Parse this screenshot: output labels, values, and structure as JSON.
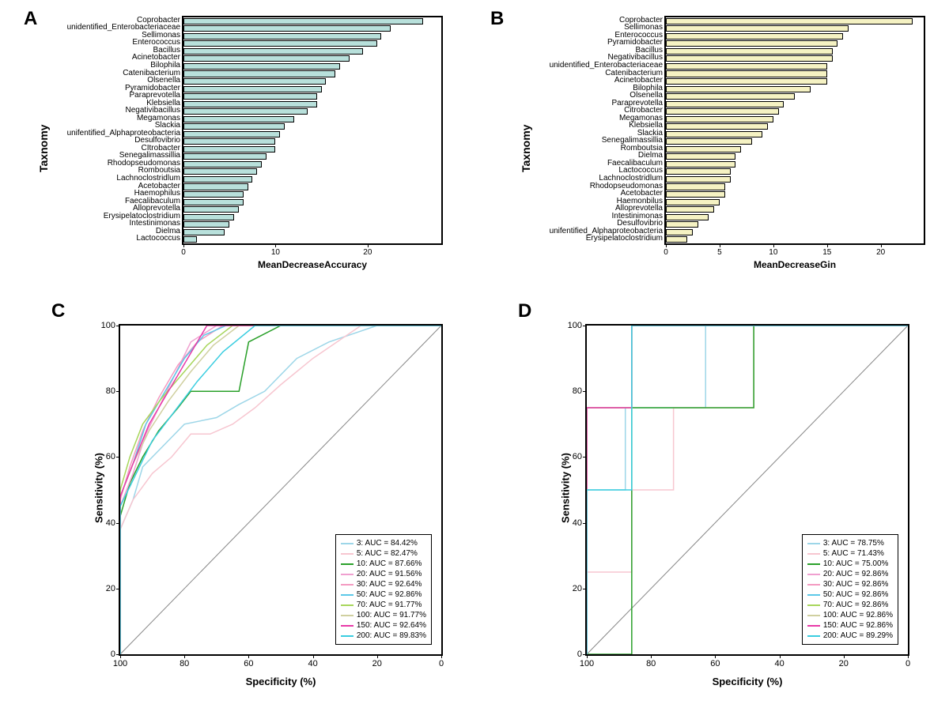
{
  "panelA": {
    "label": "A",
    "type": "bar",
    "y_axis_title": "Taxnomy",
    "x_axis_title": "MeanDecreaseAccuracy",
    "bar_color": "#b8e0db",
    "bar_border": "#000000",
    "background_color": "#ffffff",
    "xlim": [
      0,
      28
    ],
    "xticks": [
      0,
      10,
      20
    ],
    "label_fontsize": 10,
    "title_fontsize": 14,
    "categories": [
      "Coprobacter",
      "unidentified_Enterobacteriaceae",
      "Sellimonas",
      "Enterococcus",
      "Bacillus",
      "Acinetobacter",
      "Bilophila",
      "Catenibacterium",
      "Olsenella",
      "Pyramidobacter",
      "Paraprevotella",
      "Klebsiella",
      "Negativibacillus",
      "Megamonas",
      "Slackia",
      "unifentified_Alphaproteobacteria",
      "Desulfovibrio",
      "CItrobacter",
      "Senegalimassillia",
      "Rhodopseudomonas",
      "Romboutsia",
      "Lachnoclostridlum",
      "Acetobacter",
      "Haemophilus",
      "Faecalibaculum",
      "Alloprevotella",
      "Erysipelatoclostridium",
      "Intestinimonas",
      "Dielma",
      "Lactococcus"
    ],
    "values": [
      26,
      22.5,
      21.5,
      21,
      19.5,
      18,
      17,
      16.5,
      15.5,
      15,
      14.5,
      14.5,
      13.5,
      12,
      11,
      10.5,
      10,
      10,
      9,
      8.5,
      8,
      7.5,
      7,
      6.5,
      6.5,
      6,
      5.5,
      5,
      4.5,
      1.5
    ]
  },
  "panelB": {
    "label": "B",
    "type": "bar",
    "y_axis_title": "Taxnomy",
    "x_axis_title": "MeanDecreaseGin",
    "bar_color": "#f5f2c3",
    "bar_border": "#000000",
    "background_color": "#ffffff",
    "xlim": [
      0,
      24
    ],
    "xticks": [
      0,
      5,
      10,
      15,
      20
    ],
    "label_fontsize": 10,
    "title_fontsize": 14,
    "categories": [
      "Coprobacter",
      "Sellimonas",
      "Enterococcus",
      "Pyramidobacter",
      "Bacillus",
      "Negativibacillus",
      "unidentified_Enterobacteriaceae",
      "Catenibacterium",
      "Acinetobacter",
      "Bilophila",
      "Olsenella",
      "Paraprevotella",
      "Citrobacter",
      "Megamonas",
      "Klebsiella",
      "Slackia",
      "Senegalimassillia",
      "Romboutsia",
      "Dielma",
      "Faecalibaculum",
      "Lactococcus",
      "Lachnoclostridlum",
      "Rhodopseudomonas",
      "Acetobacter",
      "Haemonbilus",
      "Alloprevotella",
      "Intestinimonas",
      "Desulfovibrio",
      "unifentified_Alphaproteobacteria",
      "Erysipelatoclostridium"
    ],
    "values": [
      23,
      17,
      16.5,
      16,
      15.5,
      15.5,
      15,
      15,
      15,
      13.5,
      12,
      11,
      10.5,
      10,
      9.5,
      9,
      8,
      7,
      6.5,
      6.5,
      6,
      6,
      5.5,
      5.5,
      5,
      4.5,
      4,
      3,
      2.5,
      2
    ]
  },
  "panelC": {
    "label": "C",
    "type": "roc",
    "x_axis_title": "Specificity (%)",
    "y_axis_title": "Sensitivity (%)",
    "xlim": [
      100,
      0
    ],
    "ylim": [
      0,
      100
    ],
    "xticks": [
      100,
      80,
      60,
      40,
      20,
      0
    ],
    "yticks": [
      0,
      20,
      40,
      60,
      80,
      100
    ],
    "diagonal_color": "#888888",
    "background_color": "#ffffff",
    "line_width": 1.5,
    "series": [
      {
        "name": "3",
        "label": "3: AUC = 84.42%",
        "color": "#9dd6e8",
        "points": [
          [
            100,
            0
          ],
          [
            100,
            38
          ],
          [
            96,
            47
          ],
          [
            93,
            57
          ],
          [
            85,
            65
          ],
          [
            80,
            70
          ],
          [
            70,
            72
          ],
          [
            63,
            76
          ],
          [
            55,
            80
          ],
          [
            45,
            90
          ],
          [
            35,
            95
          ],
          [
            20,
            100
          ],
          [
            0,
            100
          ]
        ]
      },
      {
        "name": "5",
        "label": "5: AUC = 82.47%",
        "color": "#f7c6d0",
        "points": [
          [
            100,
            0
          ],
          [
            100,
            38
          ],
          [
            96,
            47
          ],
          [
            90,
            55
          ],
          [
            84,
            60
          ],
          [
            78,
            67
          ],
          [
            72,
            67
          ],
          [
            65,
            70
          ],
          [
            58,
            75
          ],
          [
            50,
            82
          ],
          [
            40,
            90
          ],
          [
            25,
            100
          ],
          [
            0,
            100
          ]
        ]
      },
      {
        "name": "10",
        "label": "10: AUC = 87.66%",
        "color": "#2aa02a",
        "points": [
          [
            100,
            0
          ],
          [
            100,
            42
          ],
          [
            97,
            52
          ],
          [
            93,
            60
          ],
          [
            88,
            68
          ],
          [
            82,
            75
          ],
          [
            78,
            80
          ],
          [
            63,
            80
          ],
          [
            60,
            95
          ],
          [
            50,
            100
          ],
          [
            0,
            100
          ]
        ]
      },
      {
        "name": "20",
        "label": "20: AUC = 91.56%",
        "color": "#f0a0d0",
        "points": [
          [
            100,
            0
          ],
          [
            100,
            45
          ],
          [
            96,
            55
          ],
          [
            92,
            67
          ],
          [
            88,
            75
          ],
          [
            83,
            85
          ],
          [
            78,
            95
          ],
          [
            70,
            100
          ],
          [
            0,
            100
          ]
        ]
      },
      {
        "name": "30",
        "label": "30: AUC = 92.64%",
        "color": "#f49ac1",
        "points": [
          [
            100,
            0
          ],
          [
            100,
            47
          ],
          [
            97,
            57
          ],
          [
            93,
            68
          ],
          [
            88,
            78
          ],
          [
            82,
            88
          ],
          [
            76,
            95
          ],
          [
            68,
            100
          ],
          [
            0,
            100
          ]
        ]
      },
      {
        "name": "50",
        "label": "50: AUC = 92.86%",
        "color": "#5cc8e8",
        "points": [
          [
            100,
            0
          ],
          [
            100,
            48
          ],
          [
            96,
            58
          ],
          [
            92,
            70
          ],
          [
            86,
            80
          ],
          [
            80,
            90
          ],
          [
            74,
            97
          ],
          [
            67,
            100
          ],
          [
            0,
            100
          ]
        ]
      },
      {
        "name": "70",
        "label": "70: AUC = 91.77%",
        "color": "#a8d65c",
        "points": [
          [
            100,
            0
          ],
          [
            100,
            50
          ],
          [
            97,
            60
          ],
          [
            93,
            70
          ],
          [
            87,
            78
          ],
          [
            80,
            86
          ],
          [
            73,
            94
          ],
          [
            65,
            100
          ],
          [
            0,
            100
          ]
        ]
      },
      {
        "name": "100",
        "label": "100: AUC = 91.77%",
        "color": "#d0d0a0",
        "points": [
          [
            100,
            0
          ],
          [
            100,
            48
          ],
          [
            96,
            58
          ],
          [
            91,
            68
          ],
          [
            85,
            77
          ],
          [
            78,
            86
          ],
          [
            71,
            94
          ],
          [
            63,
            100
          ],
          [
            0,
            100
          ]
        ]
      },
      {
        "name": "150",
        "label": "150: AUC = 92.64%",
        "color": "#e83aa8",
        "points": [
          [
            100,
            0
          ],
          [
            100,
            48
          ],
          [
            96,
            58
          ],
          [
            91,
            70
          ],
          [
            85,
            80
          ],
          [
            79,
            90
          ],
          [
            73,
            100
          ],
          [
            0,
            100
          ]
        ]
      },
      {
        "name": "200",
        "label": "200: AUC = 89.83%",
        "color": "#3acde0",
        "points": [
          [
            100,
            0
          ],
          [
            100,
            45
          ],
          [
            95,
            55
          ],
          [
            90,
            65
          ],
          [
            83,
            74
          ],
          [
            76,
            83
          ],
          [
            68,
            92
          ],
          [
            58,
            100
          ],
          [
            0,
            100
          ]
        ]
      }
    ]
  },
  "panelD": {
    "label": "D",
    "type": "roc",
    "x_axis_title": "Specificity (%)",
    "y_axis_title": "Sensitivity (%)",
    "xlim": [
      100,
      0
    ],
    "ylim": [
      0,
      100
    ],
    "xticks": [
      100,
      80,
      60,
      40,
      20,
      0
    ],
    "yticks": [
      0,
      20,
      40,
      60,
      80,
      100
    ],
    "diagonal_color": "#888888",
    "background_color": "#ffffff",
    "line_width": 1.5,
    "series": [
      {
        "name": "3",
        "label": "3: AUC = 78.75%",
        "color": "#9dd6e8",
        "points": [
          [
            100,
            0
          ],
          [
            100,
            50
          ],
          [
            88,
            50
          ],
          [
            88,
            75
          ],
          [
            63,
            75
          ],
          [
            63,
            100
          ],
          [
            0,
            100
          ]
        ]
      },
      {
        "name": "5",
        "label": "5: AUC = 71.43%",
        "color": "#f7c6d0",
        "points": [
          [
            100,
            0
          ],
          [
            100,
            25
          ],
          [
            86,
            25
          ],
          [
            86,
            50
          ],
          [
            73,
            50
          ],
          [
            73,
            75
          ],
          [
            48,
            75
          ],
          [
            48,
            100
          ],
          [
            0,
            100
          ]
        ]
      },
      {
        "name": "10",
        "label": "10: AUC = 75.00%",
        "color": "#2aa02a",
        "points": [
          [
            100,
            0
          ],
          [
            86,
            0
          ],
          [
            86,
            75
          ],
          [
            48,
            75
          ],
          [
            48,
            100
          ],
          [
            0,
            100
          ]
        ]
      },
      {
        "name": "20",
        "label": "20: AUC = 92.86%",
        "color": "#f0a0d0",
        "points": [
          [
            100,
            0
          ],
          [
            100,
            75
          ],
          [
            86,
            75
          ],
          [
            86,
            100
          ],
          [
            0,
            100
          ]
        ]
      },
      {
        "name": "30",
        "label": "30: AUC = 92.86%",
        "color": "#f49ac1",
        "points": [
          [
            100,
            0
          ],
          [
            100,
            75
          ],
          [
            86,
            75
          ],
          [
            86,
            100
          ],
          [
            0,
            100
          ]
        ]
      },
      {
        "name": "50",
        "label": "50: AUC = 92.86%",
        "color": "#5cc8e8",
        "points": [
          [
            100,
            0
          ],
          [
            100,
            75
          ],
          [
            86,
            75
          ],
          [
            86,
            100
          ],
          [
            0,
            100
          ]
        ]
      },
      {
        "name": "70",
        "label": "70: AUC = 92.86%",
        "color": "#a8d65c",
        "points": [
          [
            100,
            0
          ],
          [
            100,
            75
          ],
          [
            86,
            75
          ],
          [
            86,
            100
          ],
          [
            0,
            100
          ]
        ]
      },
      {
        "name": "100",
        "label": "100: AUC = 92.86%",
        "color": "#d0d0a0",
        "points": [
          [
            100,
            0
          ],
          [
            100,
            75
          ],
          [
            86,
            75
          ],
          [
            86,
            100
          ],
          [
            0,
            100
          ]
        ]
      },
      {
        "name": "150",
        "label": "150: AUC = 92.86%",
        "color": "#e83aa8",
        "points": [
          [
            100,
            0
          ],
          [
            100,
            75
          ],
          [
            86,
            75
          ],
          [
            86,
            100
          ],
          [
            0,
            100
          ]
        ]
      },
      {
        "name": "200",
        "label": "200: AUC = 89.29%",
        "color": "#3acde0",
        "points": [
          [
            100,
            0
          ],
          [
            100,
            50
          ],
          [
            86,
            50
          ],
          [
            86,
            100
          ],
          [
            0,
            100
          ]
        ]
      }
    ]
  }
}
